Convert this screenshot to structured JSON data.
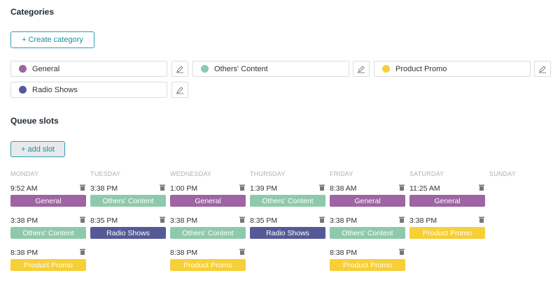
{
  "categories_section": {
    "title": "Categories",
    "create_button": "+ Create category",
    "items": [
      {
        "name": "General",
        "color": "#9e64a3"
      },
      {
        "name": "Others' Content",
        "color": "#8fc9ad"
      },
      {
        "name": "Product Promo",
        "color": "#f7cf37"
      },
      {
        "name": "Radio Shows",
        "color": "#555a97"
      }
    ]
  },
  "queue": {
    "title": "Queue slots",
    "add_button": "+ add slot",
    "days": [
      "MONDAY",
      "TUESDAY",
      "WEDNESDAY",
      "THURSDAY",
      "FRIDAY",
      "SATURDAY",
      "SUNDAY"
    ],
    "slots": {
      "monday": [
        {
          "time": "9:52 AM",
          "category": "General"
        },
        {
          "time": "3:38 PM",
          "category": "Others' Content"
        },
        {
          "time": "8:38 PM",
          "category": "Product Promo"
        }
      ],
      "tuesday": [
        {
          "time": "3:38 PM",
          "category": "Others' Content"
        },
        {
          "time": "8:35 PM",
          "category": "Radio Shows"
        }
      ],
      "wednesday": [
        {
          "time": "1:00 PM",
          "category": "General"
        },
        {
          "time": "3:38 PM",
          "category": "Others' Content"
        },
        {
          "time": "8:38 PM",
          "category": "Product Promo"
        }
      ],
      "thursday": [
        {
          "time": "1:39 PM",
          "category": "Others' Content"
        },
        {
          "time": "8:35 PM",
          "category": "Radio Shows"
        }
      ],
      "friday": [
        {
          "time": "8:38 AM",
          "category": "General"
        },
        {
          "time": "3:38 PM",
          "category": "Others' Content"
        },
        {
          "time": "8:38 PM",
          "category": "Product Promo"
        }
      ],
      "saturday": [
        {
          "time": "11:25 AM",
          "category": "General"
        },
        {
          "time": "3:38 PM",
          "category": "Product Promo"
        }
      ]
    }
  },
  "icons": {
    "edit": "pencil-icon",
    "delete": "trash-icon"
  }
}
